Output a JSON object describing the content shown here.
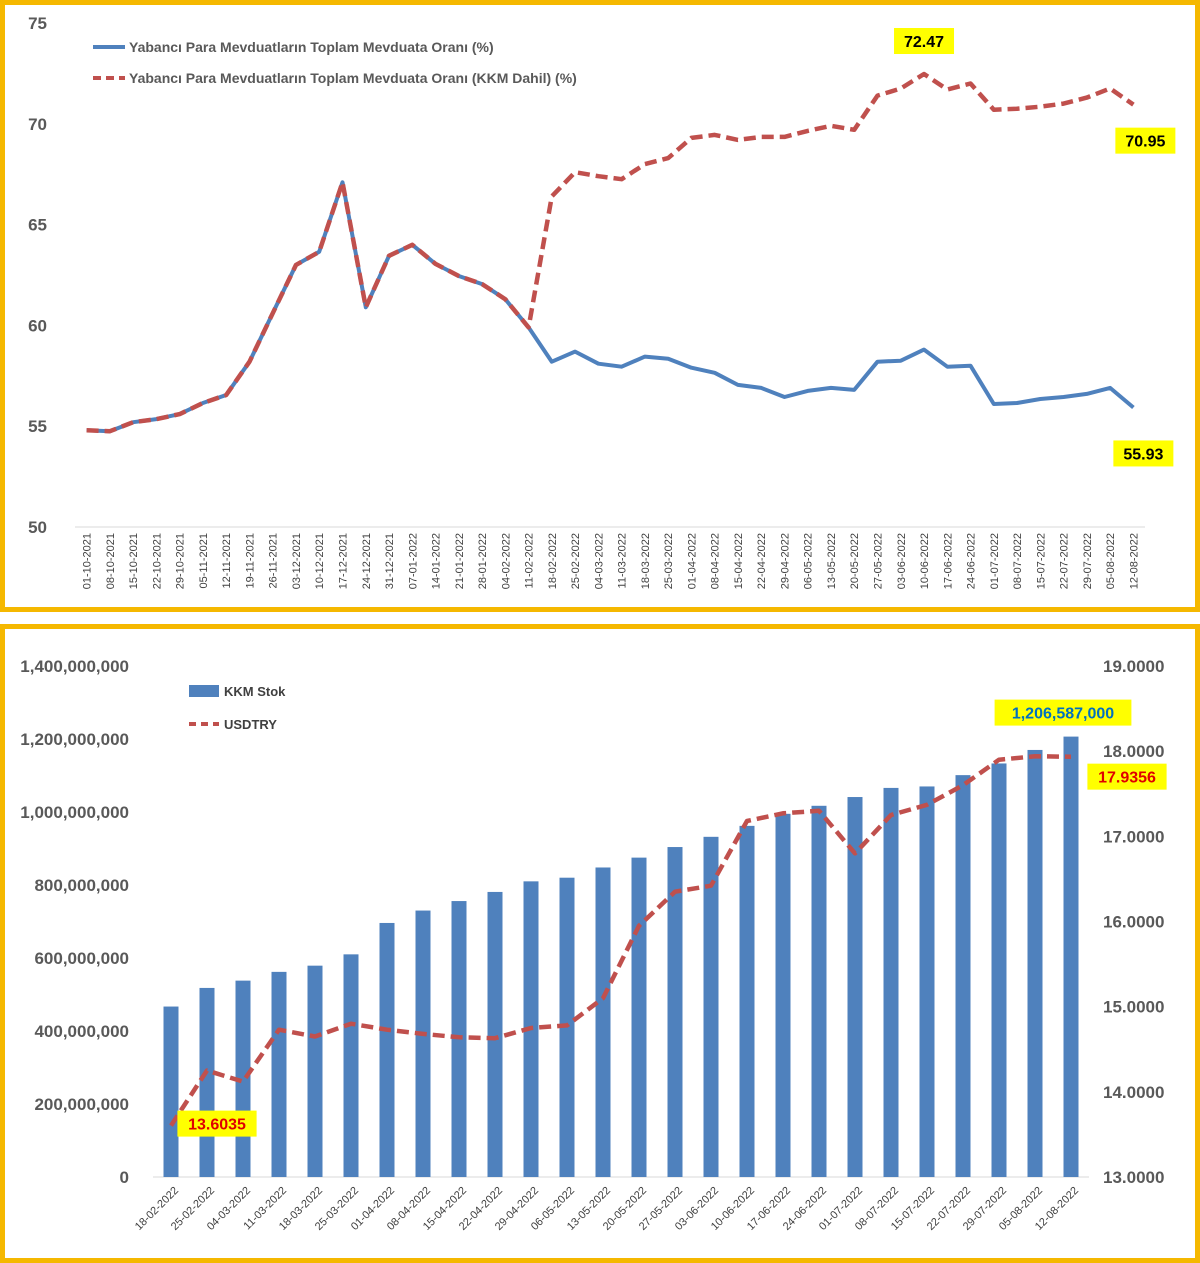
{
  "chart_data": [
    {
      "type": "line",
      "title": "",
      "xlabel": "",
      "ylabel": "",
      "ylim": [
        50,
        75
      ],
      "y_ticks": [
        "50",
        "55",
        "60",
        "65",
        "70",
        "75"
      ],
      "grid": false,
      "legend_position": "top-left",
      "categories": [
        "01-10-2021",
        "08-10-2021",
        "15-10-2021",
        "22-10-2021",
        "29-10-2021",
        "05-11-2021",
        "12-11-2021",
        "19-11-2021",
        "26-11-2021",
        "03-12-2021",
        "10-12-2021",
        "17-12-2021",
        "24-12-2021",
        "31-12-2021",
        "07-01-2022",
        "14-01-2022",
        "21-01-2022",
        "28-01-2022",
        "04-02-2022",
        "11-02-2022",
        "18-02-2022",
        "25-02-2022",
        "04-03-2022",
        "11-03-2022",
        "18-03-2022",
        "25-03-2022",
        "01-04-2022",
        "08-04-2022",
        "15-04-2022",
        "22-04-2022",
        "29-04-2022",
        "06-05-2022",
        "13-05-2022",
        "20-05-2022",
        "27-05-2022",
        "03-06-2022",
        "10-06-2022",
        "17-06-2022",
        "24-06-2022",
        "01-07-2022",
        "08-07-2022",
        "15-07-2022",
        "22-07-2022",
        "29-07-2022",
        "05-08-2022",
        "12-08-2022"
      ],
      "series": [
        {
          "name": "Yabancı Para Mevduatların Toplam Mevduata Oranı (%)",
          "style": "solid",
          "color": "#4f81bd",
          "values": [
            54.8,
            54.75,
            55.2,
            55.35,
            55.6,
            56.15,
            56.55,
            58.2,
            60.6,
            63.0,
            63.65,
            67.1,
            60.9,
            63.45,
            64.0,
            63.05,
            62.45,
            62.05,
            61.3,
            59.9,
            58.2,
            58.7,
            58.1,
            57.95,
            58.45,
            58.35,
            57.9,
            57.65,
            57.05,
            56.9,
            56.45,
            56.75,
            56.9,
            56.8,
            58.2,
            58.25,
            58.8,
            57.95,
            58.0,
            56.1,
            56.15,
            56.35,
            56.45,
            56.6,
            56.9,
            55.93
          ]
        },
        {
          "name": "Yabancı Para Mevduatların Toplam Mevduata Oranı (KKM Dahil) (%)",
          "style": "dashed",
          "color": "#c0504d",
          "values": [
            54.8,
            54.75,
            55.2,
            55.35,
            55.6,
            56.15,
            56.55,
            58.2,
            60.6,
            63.0,
            63.65,
            67.1,
            60.9,
            63.45,
            64.0,
            63.05,
            62.45,
            62.05,
            61.3,
            59.9,
            66.4,
            67.6,
            67.4,
            67.25,
            68.0,
            68.3,
            69.3,
            69.45,
            69.2,
            69.35,
            69.35,
            69.65,
            69.9,
            69.7,
            71.4,
            71.75,
            72.47,
            71.7,
            72.0,
            70.7,
            70.75,
            70.85,
            71.0,
            71.3,
            71.75,
            70.95
          ]
        }
      ],
      "callouts": [
        {
          "label": "72.47",
          "series": 1,
          "index": 36
        },
        {
          "label": "70.95",
          "series": 1,
          "index": 45
        },
        {
          "label": "55.93",
          "series": 0,
          "index": 45
        }
      ]
    },
    {
      "type": "bar",
      "title": "",
      "xlabel": "",
      "ylabel": "",
      "ylim": [
        0,
        1400000000
      ],
      "y2lim": [
        13.0,
        19.0
      ],
      "y_ticks": [
        "0",
        "200,000,000",
        "400,000,000",
        "600,000,000",
        "800,000,000",
        "1,000,000,000",
        "1,200,000,000",
        "1,400,000,000"
      ],
      "y2_ticks": [
        "13.0000",
        "14.0000",
        "15.0000",
        "16.0000",
        "17.0000",
        "18.0000",
        "19.0000"
      ],
      "grid": false,
      "legend_position": "top-left",
      "categories": [
        "18-02-2022",
        "25-02-2022",
        "04-03-2022",
        "11-03-2022",
        "18-03-2022",
        "25-03-2022",
        "01-04-2022",
        "08-04-2022",
        "15-04-2022",
        "22-04-2022",
        "29-04-2022",
        "06-05-2022",
        "13-05-2022",
        "20-05-2022",
        "27-05-2022",
        "03-06-2022",
        "10-06-2022",
        "17-06-2022",
        "24-06-2022",
        "01-07-2022",
        "08-07-2022",
        "15-07-2022",
        "22-07-2022",
        "29-07-2022",
        "05-08-2022",
        "12-08-2022"
      ],
      "series": [
        {
          "name": "KKM Stok",
          "kind": "bar",
          "axis": "left",
          "color": "#4f81bd",
          "values": [
            467000000,
            518000000,
            538000000,
            562000000,
            579000000,
            610000000,
            696000000,
            730000000,
            756000000,
            781000000,
            810000000,
            820000000,
            848000000,
            875000000,
            904000000,
            932000000,
            962000000,
            995000000,
            1017000000,
            1041000000,
            1066000000,
            1070000000,
            1101000000,
            1133000000,
            1170000000,
            1206587000
          ]
        },
        {
          "name": "USDTRY",
          "kind": "line",
          "style": "dashed",
          "axis": "right",
          "color": "#c0504d",
          "values": [
            13.6035,
            14.25,
            14.12,
            14.73,
            14.65,
            14.8,
            14.73,
            14.68,
            14.64,
            14.63,
            14.75,
            14.78,
            15.1,
            15.95,
            16.35,
            16.42,
            17.18,
            17.27,
            17.3,
            16.8,
            17.25,
            17.37,
            17.6,
            17.9,
            17.94,
            17.9356
          ]
        }
      ],
      "callouts": [
        {
          "label": "1,206,587,000",
          "series": 0,
          "index": 25
        },
        {
          "label": "17.9356",
          "series": 1,
          "index": 25
        },
        {
          "label": "13.6035",
          "series": 1,
          "index": 0
        }
      ]
    }
  ]
}
